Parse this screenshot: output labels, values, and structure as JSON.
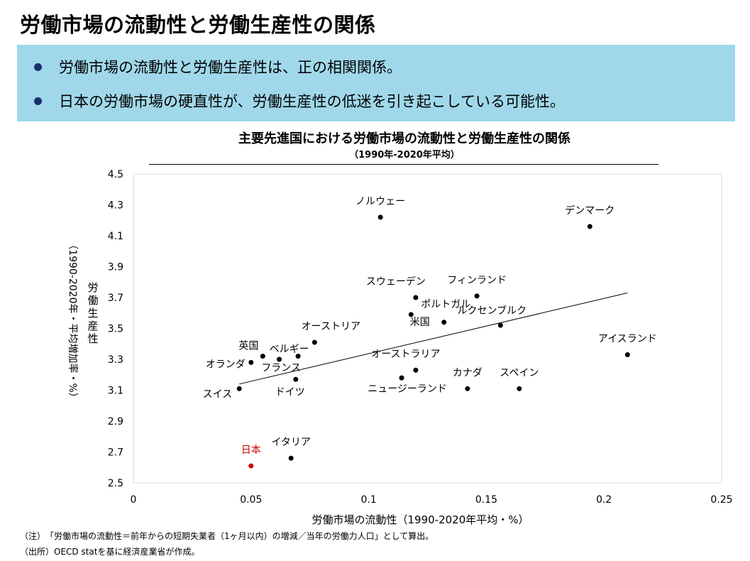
{
  "page_title": "労働市場の流動性と労働生産性の関係",
  "summary": {
    "bullets": [
      "労働市場の流動性と労働生産性は、正の相関関係。",
      "日本の労働市場の硬直性が、労働生産性の低迷を引き起こしている可能性。"
    ],
    "bullet_color": "#1a2f6e",
    "background_color": "#a0d8ea"
  },
  "chart_data": {
    "type": "scatter",
    "title": "主要先進国における労働市場の流動性と労働生産性の関係",
    "subtitle": "（1990年-2020年平均）",
    "xlabel": "労働市場の流動性（1990-2020年平均・%）",
    "ylabel_main": "労働生産性",
    "ylabel_sub": "（1990-2020年・平均増加率・%）",
    "xlim": [
      0,
      0.25
    ],
    "ylim": [
      2.5,
      4.5
    ],
    "x_ticks": [
      "0",
      "0.05",
      "0.1",
      "0.15",
      "0.2",
      "0.25"
    ],
    "y_ticks": [
      "2.5",
      "2.7",
      "2.9",
      "3.1",
      "3.3",
      "3.5",
      "3.7",
      "3.9",
      "4.1",
      "4.3",
      "4.5"
    ],
    "grid": false,
    "point_color": "#000000",
    "highlight_color": "#cc0000",
    "points": [
      {
        "name": "ノルウェー",
        "x": 0.105,
        "y": 4.22
      },
      {
        "name": "デンマーク",
        "x": 0.194,
        "y": 4.16
      },
      {
        "name": "スウェーデン",
        "x": 0.12,
        "y": 3.7
      },
      {
        "name": "フィンランド",
        "x": 0.146,
        "y": 3.71
      },
      {
        "name": "ポルトガル",
        "x": 0.118,
        "y": 3.59
      },
      {
        "name": "米国",
        "x": 0.132,
        "y": 3.54
      },
      {
        "name": "ルクセンブルク",
        "x": 0.156,
        "y": 3.52
      },
      {
        "name": "アイスランド",
        "x": 0.21,
        "y": 3.33
      },
      {
        "name": "オーストリア",
        "x": 0.077,
        "y": 3.41
      },
      {
        "name": "英国",
        "x": 0.055,
        "y": 3.32
      },
      {
        "name": "ベルギー",
        "x": 0.062,
        "y": 3.3
      },
      {
        "name": "オランダ",
        "x": 0.05,
        "y": 3.28
      },
      {
        "name": "フランス",
        "x": 0.07,
        "y": 3.32
      },
      {
        "name": "オーストラリア",
        "x": 0.12,
        "y": 3.23
      },
      {
        "name": "ニュージーランド",
        "x": 0.114,
        "y": 3.18
      },
      {
        "name": "ドイツ",
        "x": 0.069,
        "y": 3.17
      },
      {
        "name": "スイス",
        "x": 0.045,
        "y": 3.11
      },
      {
        "name": "カナダ",
        "x": 0.142,
        "y": 3.11
      },
      {
        "name": "スペイン",
        "x": 0.164,
        "y": 3.11
      },
      {
        "name": "イタリア",
        "x": 0.067,
        "y": 2.66
      },
      {
        "name": "日本",
        "x": 0.05,
        "y": 2.61,
        "highlight": true
      }
    ],
    "trendline": {
      "x": [
        0.045,
        0.21
      ],
      "y": [
        3.14,
        3.73
      ]
    }
  },
  "notes": [
    "（注）　「労働市場の流動性＝前年からの短期失業者（1ヶ月以内）の増減／当年の労働力人口」として算出。",
    "（出所）OECD statを基に経済産業省が作成。"
  ]
}
